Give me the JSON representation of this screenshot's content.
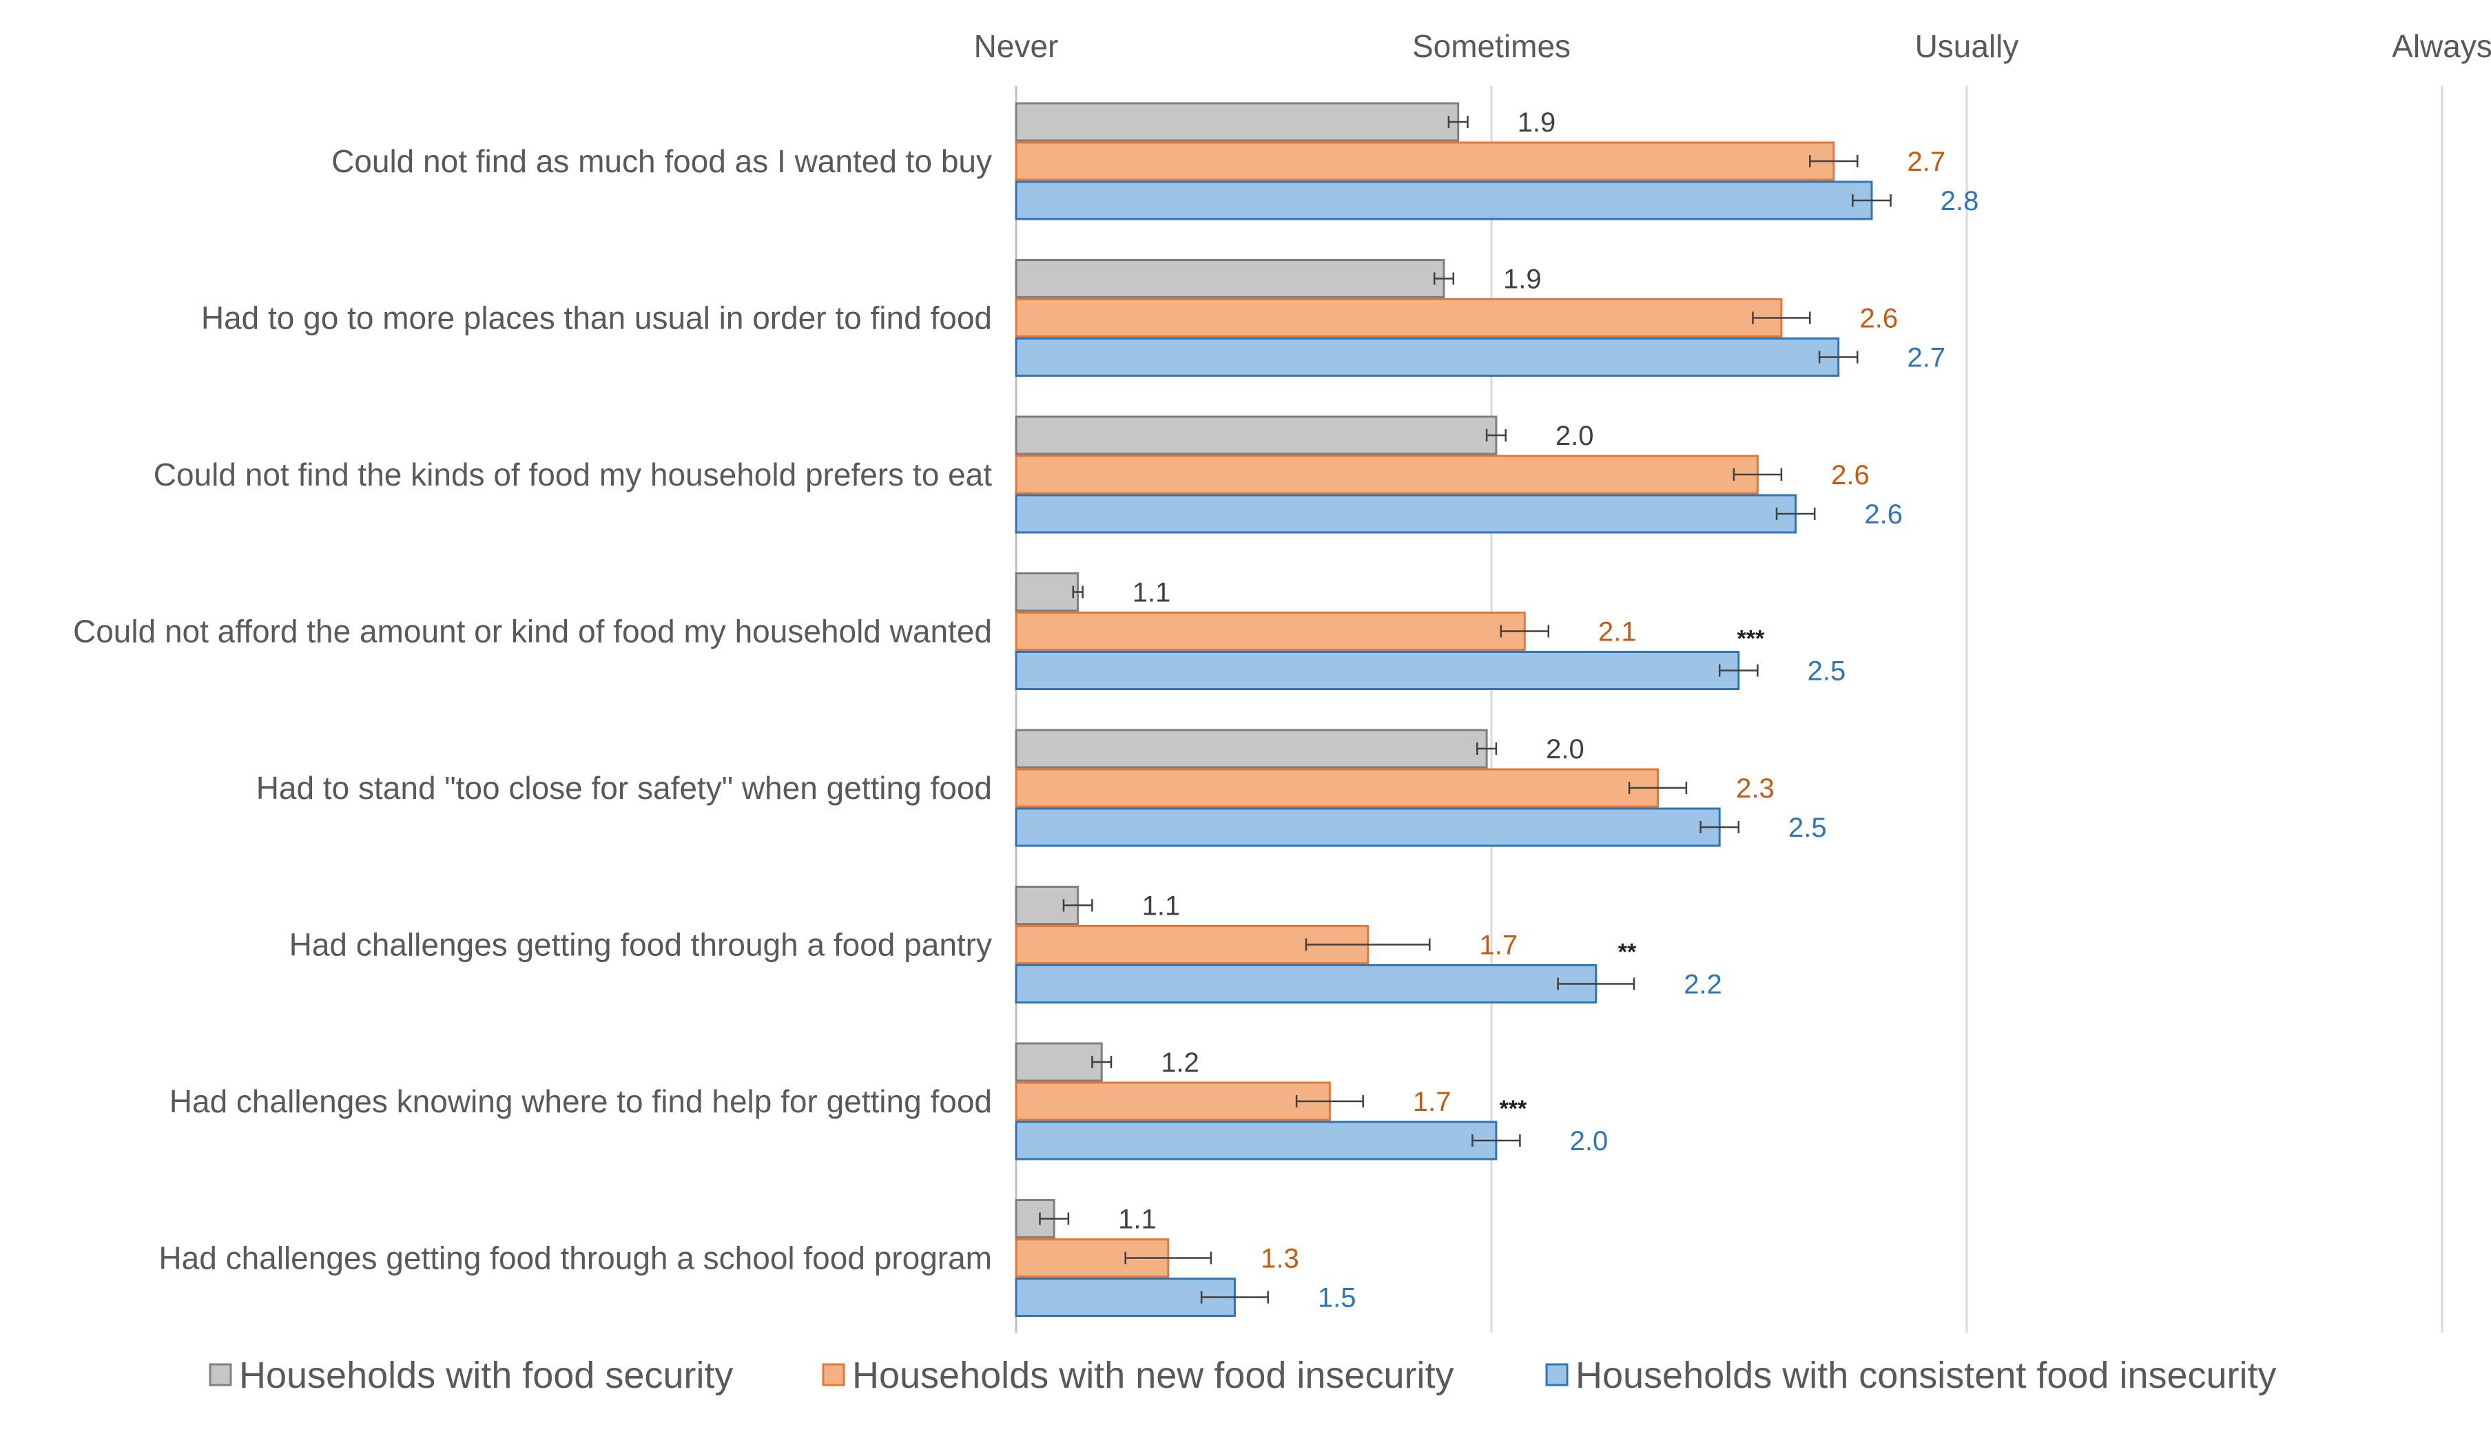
{
  "chart_data": {
    "type": "bar",
    "orientation": "horizontal",
    "title": "",
    "xlim": [
      1,
      4
    ],
    "x_ticks": [
      {
        "value": 1,
        "label": "Never"
      },
      {
        "value": 2,
        "label": "Sometimes"
      },
      {
        "value": 3,
        "label": "Usually"
      },
      {
        "value": 4,
        "label": "Always"
      }
    ],
    "grid": true,
    "legend_position": "bottom",
    "categories": [
      "Could not find as much food as I wanted to buy",
      "Had to go to more places than usual in order to find food",
      "Could not find the kinds of food my household prefers to eat",
      "Could not afford the amount or kind of food my household wanted",
      "Had to stand \"too close for safety\" when getting food",
      "Had challenges getting food through a food pantry",
      "Had challenges knowing where to find help for getting food",
      "Had challenges getting food through a school food program"
    ],
    "series": [
      {
        "name": "Households with food security",
        "color": "#c6c6c6",
        "border": "#7f7f7f",
        "label_color": "#404040",
        "values": [
          1.93,
          1.9,
          2.01,
          1.13,
          1.99,
          1.13,
          1.18,
          1.08
        ],
        "errors": [
          0.02,
          0.02,
          0.02,
          0.01,
          0.02,
          0.03,
          0.02,
          0.03
        ],
        "value_labels": [
          "1.9",
          "1.9",
          "2.0",
          "1.1",
          "2.0",
          "1.1",
          "1.2",
          "1.1"
        ]
      },
      {
        "name": "Households with new food insecurity",
        "color": "#f4b183",
        "border": "#e2793a",
        "label_color": "#c55a11",
        "values": [
          2.72,
          2.61,
          2.56,
          2.07,
          2.35,
          1.74,
          1.66,
          1.32
        ],
        "errors": [
          0.05,
          0.06,
          0.05,
          0.05,
          0.06,
          0.13,
          0.07,
          0.09
        ],
        "value_labels": [
          "2.7",
          "2.6",
          "2.6",
          "2.1",
          "2.3",
          "1.7",
          "1.7",
          "1.3"
        ]
      },
      {
        "name": "Households with consistent food insecurity",
        "color": "#9dc3e6",
        "border": "#2e75b6",
        "label_color": "#2e75b6",
        "values": [
          2.8,
          2.73,
          2.64,
          2.52,
          2.48,
          2.22,
          2.01,
          1.46
        ],
        "errors": [
          0.04,
          0.04,
          0.04,
          0.04,
          0.04,
          0.08,
          0.05,
          0.07
        ],
        "value_labels": [
          "2.8",
          "2.7",
          "2.6",
          "2.5",
          "2.5",
          "2.2",
          "2.0",
          "1.5"
        ]
      }
    ],
    "significance": [
      {
        "category_index": 3,
        "text": "***"
      },
      {
        "category_index": 5,
        "text": "**"
      },
      {
        "category_index": 6,
        "text": "***"
      }
    ]
  }
}
